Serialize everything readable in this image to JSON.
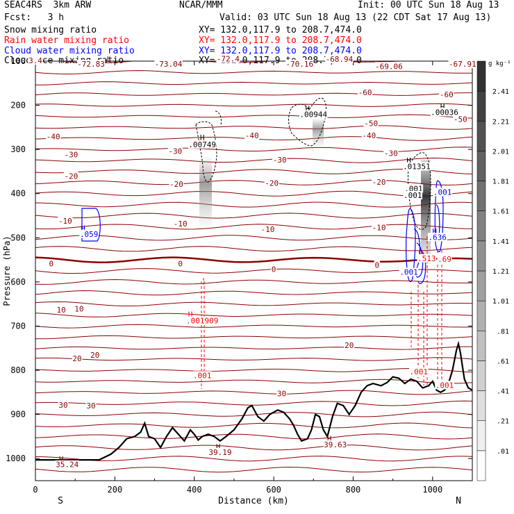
{
  "header": {
    "model": "SEAC4RS  3km ARW",
    "institution": "NCAR/MMM",
    "init": "Init: 00 UTC Sun 18 Aug 13",
    "fcst": "Fcst:   3 h",
    "valid": "Valid: 03 UTC Sun 18 Aug 13 (22 CDT Sat 17 Aug 13)",
    "fields": [
      {
        "name": "Snow mixing ratio",
        "xy": "XY= 132.0,117.9 to 208.7,474.0",
        "color": "#000000"
      },
      {
        "name": "Rain water mixing ratio",
        "xy": "XY= 132.0,117.9 to 208.7,474.0",
        "color": "#ff0000"
      },
      {
        "name": "Cloud water mixing ratio",
        "xy": "XY= 132.0,117.9 to 208.7,474.0",
        "color": "#0000ff"
      },
      {
        "name": "Cloud ice mixing ratio",
        "xy": "XY= 132.0,117.9 to 208.7,474.0",
        "color": "#000000"
      }
    ]
  },
  "colors": {
    "temperature": "#8b0000",
    "rain": "#ff0000",
    "cloud_water": "#0000ff",
    "terrain": "#000000"
  },
  "chart_data": {
    "type": "cross-section",
    "xlabel": "Distance (km)",
    "ylabel": "Pressure (hPa)",
    "xlim": [
      0,
      1100
    ],
    "ylim": [
      1050,
      100
    ],
    "x_ticks": [
      0,
      200,
      400,
      600,
      800,
      1000
    ],
    "y_ticks": [
      1000,
      900,
      800,
      700,
      600,
      500,
      400,
      300,
      200,
      100
    ],
    "endpoint_labels": [
      "S",
      "N"
    ],
    "colorbar": {
      "unit": "g kg⁻¹",
      "levels": [
        ".01",
        ".21",
        ".41",
        ".61",
        ".81",
        "1.01",
        "1.21",
        "1.41",
        "1.61",
        "1.81",
        "2.01",
        "2.21",
        "2.41"
      ]
    },
    "isotherm_labels": [
      {
        "x": 0,
        "p": 100,
        "text": "3.4"
      },
      {
        "x": 140,
        "p": 108,
        "text": "-72.83"
      },
      {
        "x": 335,
        "p": 108,
        "text": "-73.04"
      },
      {
        "x": 485,
        "p": 96,
        "text": "-72.4"
      },
      {
        "x": 665,
        "p": 108,
        "text": "-70.16"
      },
      {
        "x": 765,
        "p": 97,
        "text": "-68.94"
      },
      {
        "x": 890,
        "p": 113,
        "text": "-69.06"
      },
      {
        "x": 1075,
        "p": 108,
        "text": "-67.91"
      },
      {
        "x": 830,
        "p": 172,
        "text": "-60"
      },
      {
        "x": 1035,
        "p": 177,
        "text": "-60"
      },
      {
        "x": 845,
        "p": 242,
        "text": "-50"
      },
      {
        "x": 1070,
        "p": 233,
        "text": "-50"
      },
      {
        "x": 45,
        "p": 272,
        "text": "-40"
      },
      {
        "x": 545,
        "p": 270,
        "text": "-40"
      },
      {
        "x": 840,
        "p": 270,
        "text": "-40"
      },
      {
        "x": 90,
        "p": 313,
        "text": "-30"
      },
      {
        "x": 352,
        "p": 305,
        "text": "-30"
      },
      {
        "x": 615,
        "p": 325,
        "text": "-30"
      },
      {
        "x": 895,
        "p": 310,
        "text": "-30"
      },
      {
        "x": 90,
        "p": 362,
        "text": "-20"
      },
      {
        "x": 355,
        "p": 380,
        "text": "-20"
      },
      {
        "x": 595,
        "p": 378,
        "text": "-20"
      },
      {
        "x": 865,
        "p": 375,
        "text": "-20"
      },
      {
        "x": 75,
        "p": 463,
        "text": "-10"
      },
      {
        "x": 365,
        "p": 470,
        "text": "-10"
      },
      {
        "x": 585,
        "p": 482,
        "text": "-10"
      },
      {
        "x": 865,
        "p": 478,
        "text": "-10"
      },
      {
        "x": 40,
        "p": 560,
        "text": "0"
      },
      {
        "x": 365,
        "p": 560,
        "text": "0"
      },
      {
        "x": 600,
        "p": 573,
        "text": "0"
      },
      {
        "x": 860,
        "p": 563,
        "text": "0"
      },
      {
        "x": 65,
        "p": 665,
        "text": "10"
      },
      {
        "x": 110,
        "p": 662,
        "text": "10"
      },
      {
        "x": 105,
        "p": 775,
        "text": "20"
      },
      {
        "x": 150,
        "p": 767,
        "text": "20"
      },
      {
        "x": 790,
        "p": 745,
        "text": "20"
      },
      {
        "x": 70,
        "p": 880,
        "text": "30"
      },
      {
        "x": 140,
        "p": 882,
        "text": "30"
      },
      {
        "x": 620,
        "p": 854,
        "text": "30"
      }
    ],
    "extrema_labels": [
      {
        "x": 420,
        "p": 290,
        "text": ".00749",
        "color": "#000000"
      },
      {
        "x": 700,
        "p": 222,
        "text": ".00944",
        "color": "#000000"
      },
      {
        "x": 1030,
        "p": 217,
        "text": ".00036",
        "color": "#000000"
      },
      {
        "x": 960,
        "p": 340,
        "text": ".01351",
        "color": "#000000"
      },
      {
        "x": 952,
        "p": 390,
        "text": ".001",
        "color": "#000000"
      },
      {
        "x": 950,
        "p": 405,
        "text": ".001",
        "color": "#000000"
      },
      {
        "x": 135,
        "p": 493,
        "text": ".059",
        "color": "#0000ff"
      },
      {
        "x": 1025,
        "p": 398,
        "text": ".001",
        "color": "#0000ff"
      },
      {
        "x": 1012,
        "p": 500,
        "text": ".636",
        "color": "#0000ff"
      },
      {
        "x": 940,
        "p": 579,
        "text": ".001",
        "color": "#0000ff"
      },
      {
        "x": 985,
        "p": 548,
        "text": ".513",
        "color": "#ff0000"
      },
      {
        "x": 1030,
        "p": 550,
        "text": ".69",
        "color": "#ff0000"
      },
      {
        "x": 420,
        "p": 689,
        "text": ".001909",
        "color": "#ff0000"
      },
      {
        "x": 420,
        "p": 813,
        "text": ".001",
        "color": "#ff0000"
      },
      {
        "x": 965,
        "p": 805,
        "text": ".001",
        "color": "#ff0000"
      },
      {
        "x": 1030,
        "p": 835,
        "text": ".001",
        "color": "#ff0000"
      },
      {
        "x": 80,
        "p": 1015,
        "text": "35.24",
        "color": "#8b0000"
      },
      {
        "x": 465,
        "p": 987,
        "text": "39.19",
        "color": "#8b0000"
      },
      {
        "x": 755,
        "p": 970,
        "text": "39.63",
        "color": "#8b0000"
      }
    ],
    "extrema_markers": [
      {
        "x": 185,
        "p": 95,
        "text": "L",
        "color": "#8b0000"
      },
      {
        "x": 420,
        "p": 273,
        "text": "H",
        "color": "#000000"
      },
      {
        "x": 685,
        "p": 208,
        "text": "H",
        "color": "#000000"
      },
      {
        "x": 1025,
        "p": 203,
        "text": "H",
        "color": "#000000"
      },
      {
        "x": 940,
        "p": 325,
        "text": "H",
        "color": "#000000"
      },
      {
        "x": 120,
        "p": 478,
        "text": "H",
        "color": "#0000ff"
      },
      {
        "x": 1005,
        "p": 485,
        "text": "H",
        "color": "#0000ff"
      },
      {
        "x": 970,
        "p": 535,
        "text": "H",
        "color": "#ff0000"
      },
      {
        "x": 390,
        "p": 673,
        "text": "H",
        "color": "#ff0000"
      },
      {
        "x": 65,
        "p": 1001,
        "text": "H",
        "color": "#8b0000"
      },
      {
        "x": 460,
        "p": 973,
        "text": "H",
        "color": "#8b0000"
      },
      {
        "x": 740,
        "p": 955,
        "text": "H",
        "color": "#8b0000"
      }
    ],
    "terrain_surface": [
      {
        "x": 0,
        "p": 1003
      },
      {
        "x": 80,
        "p": 1003
      },
      {
        "x": 160,
        "p": 1003
      },
      {
        "x": 190,
        "p": 990
      },
      {
        "x": 210,
        "p": 975
      },
      {
        "x": 230,
        "p": 955
      },
      {
        "x": 250,
        "p": 950
      },
      {
        "x": 265,
        "p": 940
      },
      {
        "x": 275,
        "p": 920
      },
      {
        "x": 285,
        "p": 950
      },
      {
        "x": 300,
        "p": 955
      },
      {
        "x": 315,
        "p": 975
      },
      {
        "x": 330,
        "p": 950
      },
      {
        "x": 345,
        "p": 930
      },
      {
        "x": 360,
        "p": 945
      },
      {
        "x": 375,
        "p": 960
      },
      {
        "x": 390,
        "p": 935
      },
      {
        "x": 400,
        "p": 945
      },
      {
        "x": 410,
        "p": 958
      },
      {
        "x": 420,
        "p": 950
      },
      {
        "x": 435,
        "p": 945
      },
      {
        "x": 450,
        "p": 950
      },
      {
        "x": 465,
        "p": 960
      },
      {
        "x": 480,
        "p": 950
      },
      {
        "x": 500,
        "p": 935
      },
      {
        "x": 520,
        "p": 910
      },
      {
        "x": 535,
        "p": 885
      },
      {
        "x": 545,
        "p": 880
      },
      {
        "x": 560,
        "p": 905
      },
      {
        "x": 575,
        "p": 915
      },
      {
        "x": 590,
        "p": 900
      },
      {
        "x": 610,
        "p": 890
      },
      {
        "x": 625,
        "p": 895
      },
      {
        "x": 640,
        "p": 910
      },
      {
        "x": 650,
        "p": 925
      },
      {
        "x": 660,
        "p": 945
      },
      {
        "x": 670,
        "p": 960
      },
      {
        "x": 685,
        "p": 955
      },
      {
        "x": 695,
        "p": 935
      },
      {
        "x": 705,
        "p": 900
      },
      {
        "x": 715,
        "p": 905
      },
      {
        "x": 725,
        "p": 935
      },
      {
        "x": 735,
        "p": 950
      },
      {
        "x": 748,
        "p": 905
      },
      {
        "x": 760,
        "p": 875
      },
      {
        "x": 775,
        "p": 880
      },
      {
        "x": 790,
        "p": 900
      },
      {
        "x": 805,
        "p": 880
      },
      {
        "x": 820,
        "p": 850
      },
      {
        "x": 835,
        "p": 835
      },
      {
        "x": 850,
        "p": 830
      },
      {
        "x": 870,
        "p": 835
      },
      {
        "x": 885,
        "p": 828
      },
      {
        "x": 900,
        "p": 815
      },
      {
        "x": 915,
        "p": 818
      },
      {
        "x": 930,
        "p": 830
      },
      {
        "x": 945,
        "p": 820
      },
      {
        "x": 960,
        "p": 825
      },
      {
        "x": 975,
        "p": 840
      },
      {
        "x": 990,
        "p": 835
      },
      {
        "x": 1000,
        "p": 825
      },
      {
        "x": 1010,
        "p": 845
      },
      {
        "x": 1020,
        "p": 850
      },
      {
        "x": 1030,
        "p": 845
      },
      {
        "x": 1040,
        "p": 830
      },
      {
        "x": 1050,
        "p": 800
      },
      {
        "x": 1060,
        "p": 755
      },
      {
        "x": 1065,
        "p": 740
      },
      {
        "x": 1070,
        "p": 760
      },
      {
        "x": 1080,
        "p": 820
      },
      {
        "x": 1090,
        "p": 840
      },
      {
        "x": 1100,
        "p": 845
      }
    ]
  }
}
